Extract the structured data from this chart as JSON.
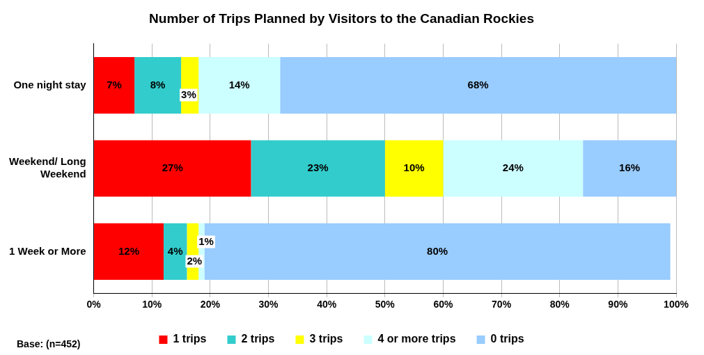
{
  "chart_data": {
    "type": "bar",
    "orientation": "horizontal",
    "stacked": true,
    "title": "Number of Trips Planned by Visitors to the Canadian Rockies",
    "categories": [
      "One night stay",
      "Weekend/ Long Weekend",
      "1 Week or More"
    ],
    "series": [
      {
        "name": "1 trips",
        "color": "#ff0000",
        "values": [
          7,
          27,
          12
        ],
        "value_labels": [
          "7%",
          "27%",
          "12%"
        ]
      },
      {
        "name": "2 trips",
        "color": "#33cccc",
        "values": [
          8,
          23,
          4
        ],
        "value_labels": [
          "8%",
          "23%",
          "4%"
        ]
      },
      {
        "name": "3 trips",
        "color": "#ffff00",
        "values": [
          3,
          10,
          2
        ],
        "value_labels": [
          "3%",
          "10%",
          "2%"
        ]
      },
      {
        "name": "4 or more trips",
        "color": "#ccffff",
        "values": [
          14,
          24,
          1
        ],
        "value_labels": [
          "14%",
          "24%",
          "1%"
        ]
      },
      {
        "name": "0 trips",
        "color": "#99ccff",
        "values": [
          68,
          16,
          80
        ],
        "value_labels": [
          "68%",
          "16%",
          "80%"
        ]
      }
    ],
    "xlim": [
      0,
      100
    ],
    "xticks": [
      {
        "value": 0,
        "label": "0%"
      },
      {
        "value": 10,
        "label": "10%"
      },
      {
        "value": 20,
        "label": "20%"
      },
      {
        "value": 30,
        "label": "30%"
      },
      {
        "value": 40,
        "label": "40%"
      },
      {
        "value": 50,
        "label": "50%"
      },
      {
        "value": 60,
        "label": "60%"
      },
      {
        "value": 70,
        "label": "70%"
      },
      {
        "value": 80,
        "label": "80%"
      },
      {
        "value": 90,
        "label": "90%"
      },
      {
        "value": 100,
        "label": "100%"
      }
    ],
    "grid": "x",
    "legend": "bottom",
    "annotations": [
      "Base: (n=452)"
    ]
  }
}
